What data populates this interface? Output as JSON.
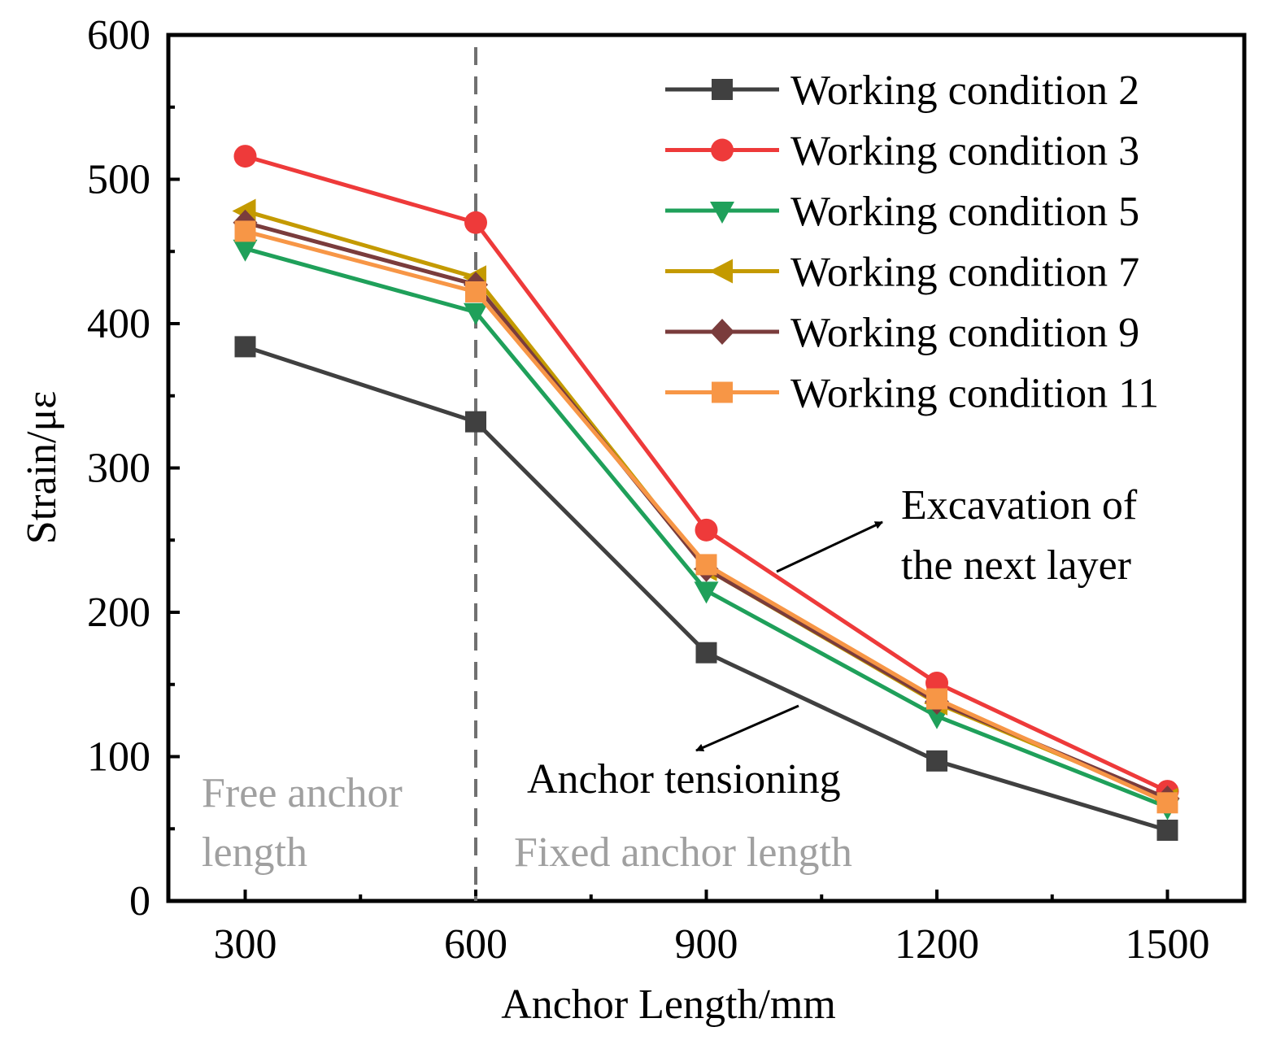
{
  "chart_data": {
    "type": "line",
    "title": "",
    "xlabel": "Anchor Length/mm",
    "ylabel": "Strain/με",
    "x": [
      300,
      600,
      900,
      1200,
      1500
    ],
    "x_ticks": [
      "300",
      "600",
      "900",
      "1200",
      "1500"
    ],
    "y_ticks": [
      "0",
      "100",
      "200",
      "300",
      "400",
      "500",
      "600"
    ],
    "xlim": [
      200,
      1600
    ],
    "ylim": [
      0,
      600
    ],
    "grid": false,
    "legend_position": "top-right",
    "series": [
      {
        "name": "Working condition 2",
        "color": "#404040",
        "marker": "square",
        "values": [
          384,
          332,
          172,
          97,
          49
        ]
      },
      {
        "name": "Working condition 3",
        "color": "#ee3a3a",
        "marker": "circle",
        "values": [
          516,
          470,
          257,
          151,
          76
        ]
      },
      {
        "name": "Working condition 5",
        "color": "#1fa05a",
        "marker": "triangle-down",
        "values": [
          452,
          408,
          215,
          128,
          65
        ]
      },
      {
        "name": "Working condition 7",
        "color": "#c49a00",
        "marker": "triangle-left",
        "values": [
          478,
          432,
          230,
          137,
          70
        ]
      },
      {
        "name": "Working condition 9",
        "color": "#7a3c3c",
        "marker": "diamond",
        "values": [
          470,
          427,
          230,
          138,
          71
        ]
      },
      {
        "name": "Working condition 11",
        "color": "#f79646",
        "marker": "square",
        "values": [
          464,
          422,
          233,
          140,
          68
        ]
      }
    ],
    "divider_x": 600,
    "region_labels": {
      "free": [
        "Free anchor",
        "length"
      ],
      "fixed": "Fixed anchor length"
    },
    "annotations": {
      "excavation": [
        "Excavation of",
        "the next layer"
      ],
      "tensioning": "Anchor tensioning"
    }
  }
}
